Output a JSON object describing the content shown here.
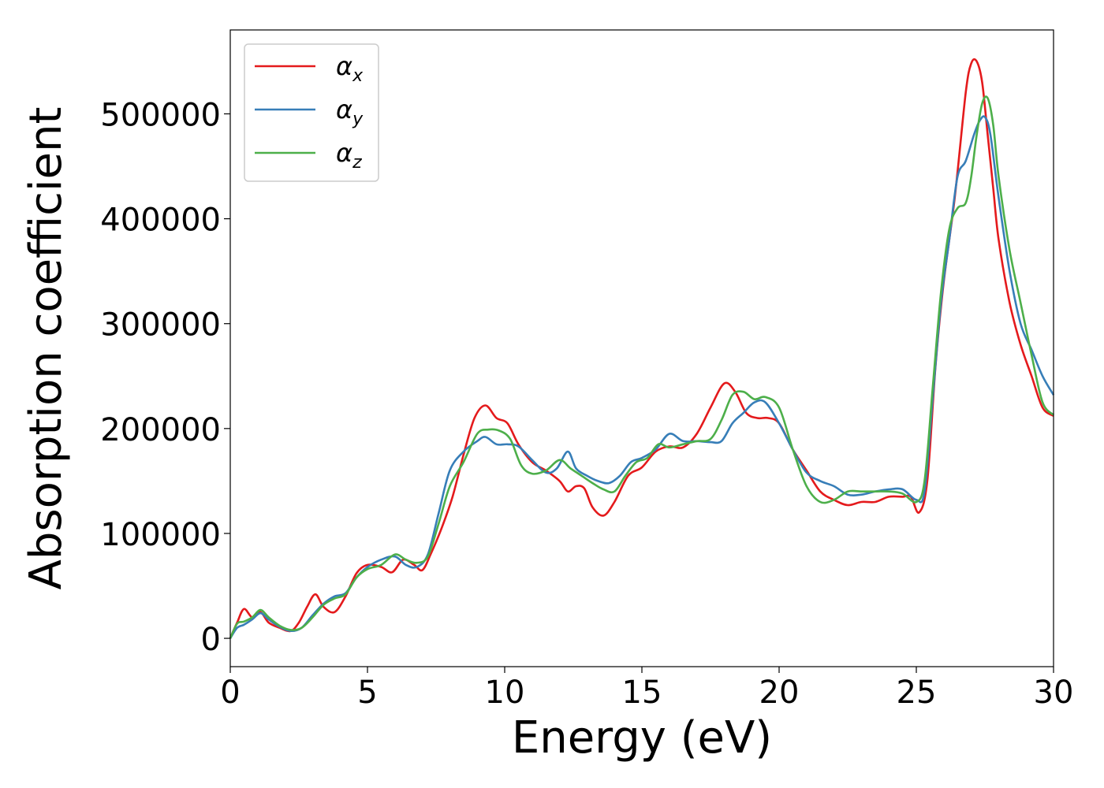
{
  "chart_data": {
    "type": "line",
    "title": "",
    "xlabel": "Energy (eV)",
    "ylabel": "Absorption coefficient",
    "xlim": [
      0,
      30
    ],
    "ylim": [
      -27000,
      580000
    ],
    "xticks": [
      0,
      5,
      10,
      15,
      20,
      25,
      30
    ],
    "xtick_labels": [
      "0",
      "5",
      "10",
      "15",
      "20",
      "25",
      "30"
    ],
    "yticks": [
      0,
      100000,
      200000,
      300000,
      400000,
      500000
    ],
    "ytick_labels": [
      "0",
      "100000",
      "200000",
      "300000",
      "400000",
      "500000"
    ],
    "grid": false,
    "legend_position": "top-left",
    "series": [
      {
        "name": "α",
        "subscript": "x",
        "color": "#e41a1c",
        "x": [
          0,
          0.25,
          0.5,
          0.8,
          1.1,
          1.4,
          1.8,
          2.2,
          2.5,
          2.8,
          3.1,
          3.4,
          3.8,
          4.2,
          4.6,
          5.0,
          5.5,
          5.9,
          6.3,
          6.7,
          7.0,
          7.3,
          7.7,
          8.1,
          8.5,
          8.9,
          9.3,
          9.7,
          10.1,
          10.5,
          11.0,
          11.5,
          12.0,
          12.3,
          12.6,
          12.9,
          13.2,
          13.6,
          14.0,
          14.5,
          15.0,
          15.5,
          16.0,
          16.5,
          17.0,
          17.5,
          18.0,
          18.4,
          18.8,
          19.2,
          19.6,
          20.0,
          20.5,
          21.0,
          21.5,
          22.0,
          22.5,
          23.0,
          23.5,
          24.0,
          24.5,
          24.8,
          25.1,
          25.4,
          25.7,
          26.0,
          26.4,
          26.8,
          27.0,
          27.2,
          27.4,
          27.6,
          27.8,
          28.0,
          28.4,
          28.8,
          29.2,
          29.6,
          30.0
        ],
        "y": [
          0,
          15000,
          28000,
          20000,
          25000,
          15000,
          10000,
          7000,
          15000,
          30000,
          42000,
          30000,
          25000,
          40000,
          62000,
          70000,
          68000,
          63000,
          75000,
          70000,
          65000,
          80000,
          105000,
          135000,
          175000,
          210000,
          222000,
          210000,
          205000,
          185000,
          168000,
          160000,
          150000,
          140000,
          145000,
          143000,
          125000,
          117000,
          130000,
          155000,
          163000,
          178000,
          183000,
          182000,
          195000,
          220000,
          243000,
          235000,
          215000,
          210000,
          210000,
          205000,
          180000,
          160000,
          140000,
          132000,
          127000,
          130000,
          130000,
          135000,
          135000,
          135000,
          120000,
          150000,
          260000,
          340000,
          420000,
          520000,
          548000,
          550000,
          530000,
          480000,
          430000,
          380000,
          320000,
          280000,
          250000,
          220000,
          212000
        ]
      },
      {
        "name": "α",
        "subscript": "y",
        "color": "#377eb8",
        "x": [
          0,
          0.25,
          0.5,
          0.8,
          1.1,
          1.4,
          1.8,
          2.2,
          2.6,
          3.0,
          3.4,
          3.8,
          4.2,
          4.6,
          5.0,
          5.5,
          6.0,
          6.4,
          6.8,
          7.2,
          7.6,
          8.0,
          8.5,
          9.0,
          9.3,
          9.7,
          10.1,
          10.5,
          11.0,
          11.5,
          11.9,
          12.3,
          12.6,
          13.0,
          13.4,
          13.8,
          14.2,
          14.6,
          15.0,
          15.5,
          16.0,
          16.5,
          17.0,
          17.5,
          17.9,
          18.3,
          18.7,
          19.1,
          19.5,
          20.0,
          20.5,
          21.0,
          21.5,
          22.0,
          22.5,
          23.0,
          23.5,
          24.0,
          24.5,
          25.0,
          25.3,
          25.6,
          25.9,
          26.2,
          26.5,
          26.8,
          27.1,
          27.3,
          27.5,
          27.7,
          28.0,
          28.4,
          28.8,
          29.2,
          29.6,
          30.0
        ],
        "y": [
          0,
          10000,
          13000,
          18000,
          24000,
          18000,
          11000,
          7000,
          10000,
          22000,
          33000,
          40000,
          43000,
          58000,
          68000,
          75000,
          78000,
          70000,
          68000,
          80000,
          120000,
          160000,
          178000,
          188000,
          192000,
          185000,
          185000,
          183000,
          170000,
          158000,
          162000,
          178000,
          162000,
          155000,
          150000,
          148000,
          155000,
          168000,
          172000,
          180000,
          195000,
          188000,
          188000,
          187000,
          188000,
          205000,
          215000,
          225000,
          225000,
          205000,
          180000,
          158000,
          150000,
          145000,
          137000,
          137000,
          140000,
          142000,
          142000,
          132000,
          140000,
          230000,
          320000,
          380000,
          440000,
          455000,
          480000,
          493000,
          497000,
          480000,
          420000,
          350000,
          300000,
          275000,
          250000,
          232000
        ]
      },
      {
        "name": "α",
        "subscript": "z",
        "color": "#4daf4a",
        "x": [
          0,
          0.25,
          0.5,
          0.8,
          1.1,
          1.4,
          1.8,
          2.2,
          2.6,
          3.0,
          3.4,
          3.8,
          4.2,
          4.6,
          5.0,
          5.5,
          6.0,
          6.4,
          6.8,
          7.2,
          7.6,
          8.0,
          8.5,
          9.0,
          9.4,
          9.8,
          10.2,
          10.6,
          11.0,
          11.5,
          12.0,
          12.4,
          12.8,
          13.2,
          13.6,
          14.0,
          14.4,
          14.8,
          15.2,
          15.6,
          16.0,
          16.5,
          17.0,
          17.5,
          17.9,
          18.3,
          18.7,
          19.1,
          19.5,
          20.0,
          20.5,
          21.0,
          21.5,
          22.0,
          22.5,
          23.0,
          23.5,
          24.0,
          24.5,
          25.0,
          25.3,
          25.6,
          25.9,
          26.2,
          26.5,
          26.8,
          27.0,
          27.2,
          27.4,
          27.6,
          27.8,
          28.0,
          28.4,
          28.8,
          29.2,
          29.6,
          30.0
        ],
        "y": [
          0,
          14000,
          16000,
          20000,
          27000,
          20000,
          12000,
          8000,
          10000,
          20000,
          32000,
          38000,
          42000,
          58000,
          66000,
          70000,
          80000,
          75000,
          72000,
          78000,
          110000,
          145000,
          168000,
          195000,
          199000,
          198000,
          190000,
          165000,
          157000,
          160000,
          170000,
          162000,
          155000,
          148000,
          142000,
          140000,
          155000,
          168000,
          172000,
          185000,
          182000,
          185000,
          188000,
          190000,
          208000,
          232000,
          235000,
          228000,
          230000,
          220000,
          180000,
          145000,
          130000,
          132000,
          140000,
          140000,
          140000,
          140000,
          138000,
          130000,
          150000,
          240000,
          330000,
          390000,
          410000,
          415000,
          440000,
          480000,
          510000,
          515000,
          490000,
          440000,
          370000,
          320000,
          270000,
          225000,
          213000
        ]
      }
    ]
  }
}
